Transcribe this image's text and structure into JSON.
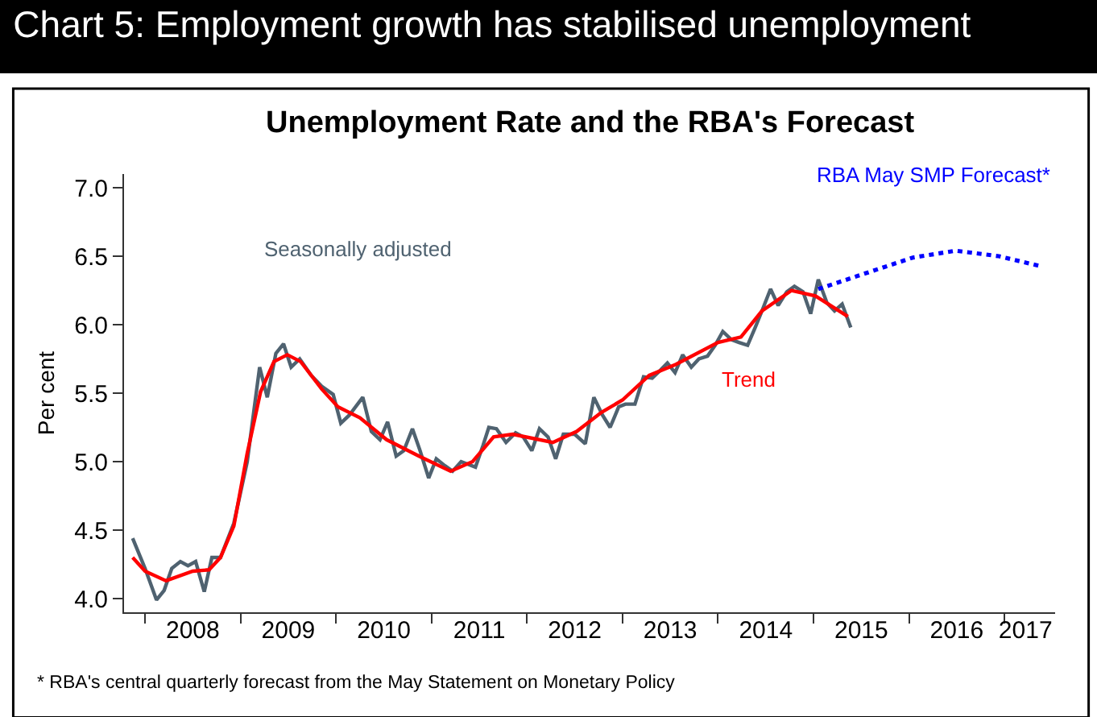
{
  "chart_data": {
    "type": "line",
    "title": "Chart 5: Employment growth has stabilised unemployment",
    "subtitle": "Unemployment Rate and the RBA's Forecast",
    "ylabel": "Per cent",
    "annotations": [
      "* RBA's central quarterly forecast from the May Statement on Monetary Policy"
    ],
    "series": [
      {
        "name": "Seasonally adjusted",
        "color": "#4f6270",
        "line_style": "solid",
        "x": [
          2007.87,
          2008.0,
          2008.12,
          2008.2,
          2008.28,
          2008.37,
          2008.45,
          2008.53,
          2008.62,
          2008.7,
          2008.79,
          2008.93,
          2009.07,
          2009.2,
          2009.28,
          2009.37,
          2009.45,
          2009.53,
          2009.62,
          2009.74,
          2009.85,
          2009.97,
          2010.05,
          2010.14,
          2010.28,
          2010.37,
          2010.46,
          2010.54,
          2010.63,
          2010.71,
          2010.8,
          2010.88,
          2010.97,
          2011.05,
          2011.14,
          2011.22,
          2011.31,
          2011.46,
          2011.54,
          2011.6,
          2011.68,
          2011.78,
          2011.88,
          2011.96,
          2012.05,
          2012.13,
          2012.22,
          2012.3,
          2012.38,
          2012.5,
          2012.61,
          2012.7,
          2012.79,
          2012.87,
          2012.96,
          2013.03,
          2013.13,
          2013.22,
          2013.31,
          2013.4,
          2013.47,
          2013.55,
          2013.63,
          2013.72,
          2013.8,
          2013.89,
          2013.97,
          2014.05,
          2014.14,
          2014.22,
          2014.31,
          2014.39,
          2014.46,
          2014.55,
          2014.63,
          2014.72,
          2014.8,
          2014.89,
          2014.97,
          2015.05,
          2015.14,
          2015.22,
          2015.3,
          2015.39
        ],
        "values": [
          4.44,
          4.22,
          3.99,
          4.06,
          4.22,
          4.27,
          4.24,
          4.27,
          4.05,
          4.3,
          4.3,
          4.55,
          5.0,
          5.69,
          5.47,
          5.79,
          5.86,
          5.69,
          5.75,
          5.63,
          5.55,
          5.49,
          5.28,
          5.34,
          5.47,
          5.22,
          5.16,
          5.29,
          5.04,
          5.08,
          5.24,
          5.08,
          4.88,
          5.02,
          4.97,
          4.93,
          5.0,
          4.96,
          5.12,
          5.25,
          5.24,
          5.14,
          5.21,
          5.18,
          5.08,
          5.24,
          5.18,
          5.02,
          5.2,
          5.2,
          5.13,
          5.47,
          5.34,
          5.25,
          5.4,
          5.42,
          5.42,
          5.62,
          5.61,
          5.67,
          5.72,
          5.65,
          5.78,
          5.69,
          5.75,
          5.77,
          5.85,
          5.95,
          5.89,
          5.87,
          5.85,
          5.98,
          6.1,
          6.26,
          6.14,
          6.24,
          6.28,
          6.24,
          6.08,
          6.33,
          6.16,
          6.1,
          6.15,
          5.98
        ]
      },
      {
        "name": "Trend",
        "color": "#ff0000",
        "line_style": "solid",
        "x": [
          2007.87,
          2008.0,
          2008.22,
          2008.5,
          2008.67,
          2008.79,
          2008.93,
          2009.07,
          2009.21,
          2009.35,
          2009.49,
          2009.63,
          2009.85,
          2010.02,
          2010.25,
          2010.53,
          2010.87,
          2011.2,
          2011.43,
          2011.65,
          2011.85,
          2012.27,
          2012.52,
          2012.78,
          2013.0,
          2013.28,
          2013.56,
          2014.0,
          2014.24,
          2014.46,
          2014.77,
          2015.02,
          2015.36
        ],
        "values": [
          4.3,
          4.2,
          4.13,
          4.2,
          4.21,
          4.3,
          4.53,
          5.06,
          5.51,
          5.73,
          5.78,
          5.73,
          5.53,
          5.4,
          5.32,
          5.16,
          5.04,
          4.93,
          5.0,
          5.18,
          5.2,
          5.14,
          5.22,
          5.36,
          5.45,
          5.63,
          5.71,
          5.87,
          5.91,
          6.1,
          6.25,
          6.21,
          6.06
        ]
      },
      {
        "name": "RBA May SMP Forecast*",
        "color": "#0000ff",
        "line_style": "dotted",
        "x": [
          2015.05,
          2015.48,
          2016.04,
          2016.49,
          2016.94,
          2017.36
        ],
        "values": [
          6.26,
          6.36,
          6.49,
          6.54,
          6.5,
          6.43
        ]
      }
    ],
    "xlim": [
      2007.78,
      2017.53
    ],
    "xticks": [
      {
        "value": 2008,
        "label": null
      },
      {
        "value": 2008.5,
        "label": "2008"
      },
      {
        "value": 2009,
        "label": null
      },
      {
        "value": 2009.5,
        "label": "2009"
      },
      {
        "value": 2010,
        "label": null
      },
      {
        "value": 2010.5,
        "label": "2010"
      },
      {
        "value": 2011,
        "label": null
      },
      {
        "value": 2011.5,
        "label": "2011"
      },
      {
        "value": 2012,
        "label": null
      },
      {
        "value": 2012.5,
        "label": "2012"
      },
      {
        "value": 2013,
        "label": null
      },
      {
        "value": 2013.5,
        "label": "2013"
      },
      {
        "value": 2014,
        "label": null
      },
      {
        "value": 2014.5,
        "label": "2014"
      },
      {
        "value": 2015,
        "label": null
      },
      {
        "value": 2015.5,
        "label": "2015"
      },
      {
        "value": 2016,
        "label": null
      },
      {
        "value": 2016.5,
        "label": "2016"
      },
      {
        "value": 2017,
        "label": null
      },
      {
        "value": 2017.22,
        "label": "2017"
      }
    ],
    "ylim": [
      3.9,
      7.1
    ],
    "yticks": [
      {
        "value": 4,
        "label": "4.0"
      },
      {
        "value": 4.5,
        "label": "4.5"
      },
      {
        "value": 5,
        "label": "5.0"
      },
      {
        "value": 5.5,
        "label": "5.5"
      },
      {
        "value": 6,
        "label": "6.0"
      },
      {
        "value": 6.5,
        "label": "6.5"
      },
      {
        "value": 7,
        "label": "7.0"
      }
    ],
    "grid": false,
    "legend": false,
    "marker": "none"
  }
}
